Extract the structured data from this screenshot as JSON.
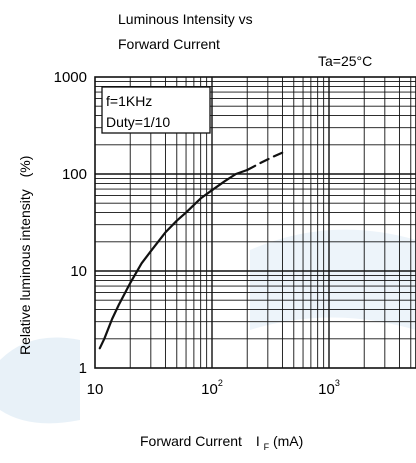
{
  "chart_data": {
    "type": "line",
    "title": [
      "Luminous Intensity vs",
      "Forward Current"
    ],
    "condition": "Ta=25°C",
    "inset_lines": [
      "f=1KHz",
      "Duty=1/10"
    ],
    "ylabel": "Relative luminous intensity",
    "ylabel_unit": "(%)",
    "xlabel": "Forward Current",
    "xlabel_symbol": "I",
    "xlabel_subscript": "F",
    "xlabel_unit": "(mA)",
    "x_scale": "log",
    "y_scale": "log",
    "xlim": [
      10,
      1000
    ],
    "ylim": [
      1,
      1000
    ],
    "grid": true,
    "x_ticks": [
      {
        "value": 10,
        "base": "10",
        "exp": ""
      },
      {
        "value": 100,
        "base": "10",
        "exp": "2"
      },
      {
        "value": 1000,
        "base": "10",
        "exp": "3"
      }
    ],
    "y_ticks": [
      {
        "value": 1,
        "label": "1"
      },
      {
        "value": 10,
        "label": "10"
      },
      {
        "value": 100,
        "label": "100"
      },
      {
        "value": 1000,
        "label": "1000"
      }
    ],
    "series": [
      {
        "style": "solid",
        "x": [
          11,
          12,
          14,
          16,
          20,
          25,
          30,
          40,
          50,
          60,
          70,
          80,
          100,
          130,
          160,
          200
        ],
        "y": [
          1.6,
          2.0,
          3.2,
          4.5,
          7.5,
          12,
          16,
          25,
          33,
          40,
          48,
          56,
          68,
          85,
          100,
          110
        ]
      },
      {
        "style": "dashed",
        "x": [
          200,
          260,
          330,
          420
        ],
        "y": [
          110,
          130,
          150,
          170
        ]
      }
    ]
  }
}
